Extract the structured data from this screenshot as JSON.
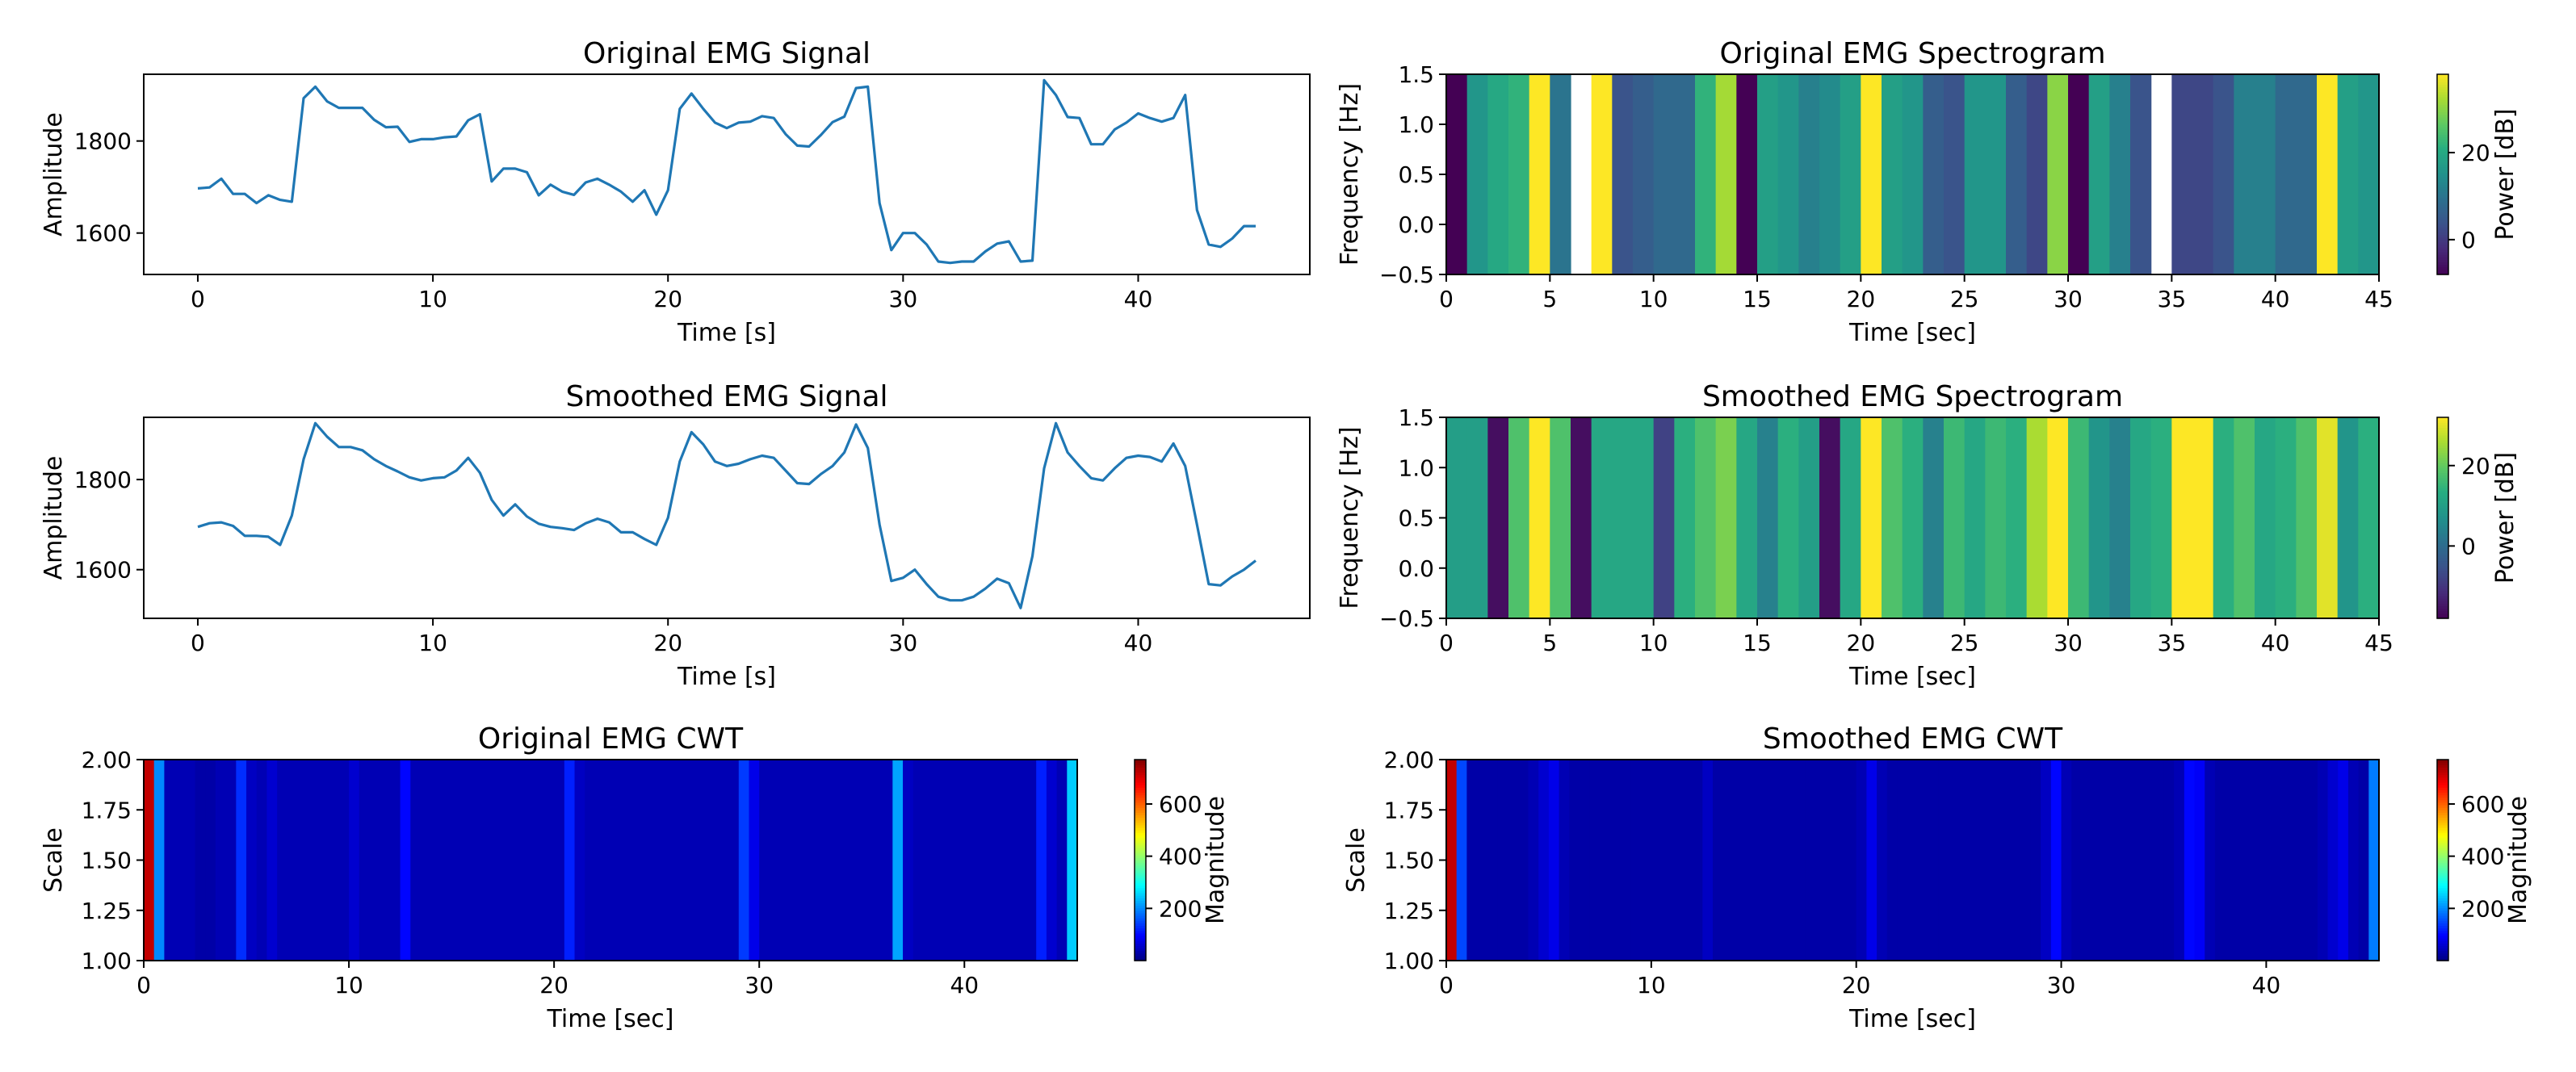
{
  "chart_data": [
    {
      "id": "orig_signal",
      "type": "line",
      "title": "Original EMG Signal",
      "xlabel": "Time [s]",
      "ylabel": "Amplitude",
      "xlim": [
        -2.3,
        47.3
      ],
      "ylim": [
        1510,
        1945
      ],
      "xticks": [
        0,
        10,
        20,
        30,
        40
      ],
      "yticks": [
        1600,
        1800
      ],
      "color": "#1f77b4",
      "x": [
        0,
        0.5,
        1,
        1.5,
        2,
        2.5,
        3,
        3.5,
        4,
        4.5,
        5,
        5.5,
        6,
        6.5,
        7,
        7.5,
        8,
        8.5,
        9,
        9.5,
        10,
        10.5,
        11,
        11.5,
        12,
        12.5,
        13,
        13.5,
        14,
        14.5,
        15,
        15.5,
        16,
        16.5,
        17,
        17.5,
        18,
        18.5,
        19,
        19.5,
        20,
        20.5,
        21,
        21.5,
        22,
        22.5,
        23,
        23.5,
        24,
        24.5,
        25,
        25.5,
        26,
        26.5,
        27,
        27.5,
        28,
        28.5,
        29,
        29.5,
        30,
        30.5,
        31,
        31.5,
        32,
        32.5,
        33,
        33.5,
        34,
        34.5,
        35,
        35.5,
        36,
        36.5,
        37,
        37.5,
        38,
        38.5,
        39,
        39.5,
        40,
        40.5,
        41,
        41.5,
        42,
        42.5,
        43,
        43.5,
        44,
        44.5,
        45
      ],
      "y": [
        1697,
        1699,
        1718,
        1685,
        1685,
        1665,
        1682,
        1672,
        1668,
        1893,
        1918,
        1886,
        1872,
        1872,
        1872,
        1846,
        1830,
        1831,
        1798,
        1804,
        1804,
        1808,
        1810,
        1845,
        1858,
        1712,
        1740,
        1740,
        1732,
        1682,
        1705,
        1690,
        1683,
        1710,
        1718,
        1705,
        1690,
        1668,
        1693,
        1640,
        1693,
        1870,
        1903,
        1870,
        1840,
        1828,
        1840,
        1842,
        1854,
        1850,
        1815,
        1790,
        1788,
        1813,
        1841,
        1853,
        1915,
        1918,
        1665,
        1563,
        1600,
        1600,
        1575,
        1538,
        1535,
        1538,
        1538,
        1560,
        1577,
        1582,
        1538,
        1540,
        1932,
        1900,
        1852,
        1850,
        1793,
        1793,
        1825,
        1840,
        1860,
        1850,
        1842,
        1850,
        1900,
        1650,
        1575,
        1570,
        1588,
        1615,
        1615
      ]
    },
    {
      "id": "smooth_signal",
      "type": "line",
      "title": "Smoothed EMG Signal",
      "xlabel": "Time [s]",
      "ylabel": "Amplitude",
      "xlim": [
        -2.3,
        47.3
      ],
      "ylim": [
        1492,
        1938
      ],
      "xticks": [
        0,
        10,
        20,
        30,
        40
      ],
      "yticks": [
        1600,
        1800
      ],
      "color": "#1f77b4",
      "x": [
        0,
        0.5,
        1,
        1.5,
        2,
        2.5,
        3,
        3.5,
        4,
        4.5,
        5,
        5.5,
        6,
        6.5,
        7,
        7.5,
        8,
        8.5,
        9,
        9.5,
        10,
        10.5,
        11,
        11.5,
        12,
        12.5,
        13,
        13.5,
        14,
        14.5,
        15,
        15.5,
        16,
        16.5,
        17,
        17.5,
        18,
        18.5,
        19,
        19.5,
        20,
        20.5,
        21,
        21.5,
        22,
        22.5,
        23,
        23.5,
        24,
        24.5,
        25,
        25.5,
        26,
        26.5,
        27,
        27.5,
        28,
        28.5,
        29,
        29.5,
        30,
        30.5,
        31,
        31.5,
        32,
        32.5,
        33,
        33.5,
        34,
        34.5,
        35,
        35.5,
        36,
        36.5,
        37,
        37.5,
        38,
        38.5,
        39,
        39.5,
        40,
        40.5,
        41,
        41.5,
        42,
        42.5,
        43,
        43.5,
        44,
        44.5,
        45
      ],
      "y": [
        1695,
        1703,
        1705,
        1697,
        1675,
        1675,
        1673,
        1655,
        1720,
        1845,
        1925,
        1895,
        1872,
        1872,
        1865,
        1845,
        1830,
        1818,
        1805,
        1798,
        1803,
        1805,
        1820,
        1848,
        1815,
        1755,
        1720,
        1745,
        1718,
        1702,
        1695,
        1692,
        1688,
        1703,
        1713,
        1705,
        1683,
        1683,
        1668,
        1655,
        1715,
        1840,
        1905,
        1878,
        1840,
        1830,
        1835,
        1845,
        1853,
        1848,
        1820,
        1792,
        1790,
        1812,
        1830,
        1860,
        1922,
        1870,
        1700,
        1575,
        1582,
        1600,
        1568,
        1540,
        1532,
        1532,
        1540,
        1558,
        1580,
        1570,
        1515,
        1630,
        1825,
        1925,
        1860,
        1830,
        1803,
        1798,
        1825,
        1848,
        1853,
        1850,
        1840,
        1880,
        1830,
        1700,
        1568,
        1565,
        1585,
        1600,
        1620
      ]
    },
    {
      "id": "orig_spec",
      "type": "heatmap",
      "title": "Original EMG Spectrogram",
      "xlabel": "Time [sec]",
      "ylabel": "Frequency [Hz]",
      "xlim": [
        0,
        45
      ],
      "ylim": [
        -0.5,
        1.5
      ],
      "xticks": [
        0,
        5,
        10,
        15,
        20,
        25,
        30,
        35,
        40,
        45
      ],
      "yticks": [
        -0.5,
        0.0,
        0.5,
        1.0,
        1.5
      ],
      "xtick_labels": [
        "0",
        "5",
        "10",
        "15",
        "20",
        "25",
        "30",
        "35",
        "40",
        "45"
      ],
      "ytick_labels": [
        "−0.5",
        "0.0",
        "0.5",
        "1.0",
        "1.5"
      ],
      "colormap": "viridis",
      "vmin": -8,
      "vmax": 38,
      "colorbar_label": "Power [dB]",
      "colorbar_ticks": [
        0,
        20
      ],
      "time_edges": [
        0,
        1,
        2,
        3,
        4,
        5,
        6,
        7,
        8,
        9,
        10,
        11,
        12,
        13,
        14,
        15,
        16,
        17,
        18,
        19,
        20,
        21,
        22,
        23,
        24,
        25,
        26,
        27,
        28,
        29,
        30,
        31,
        32,
        33,
        34,
        35,
        36,
        37,
        38,
        39,
        40,
        41,
        42,
        43,
        44,
        45
      ],
      "power": [
        -8,
        16,
        20,
        22,
        38,
        10,
        null,
        38,
        4,
        6,
        8,
        8,
        22,
        32,
        -8,
        18,
        16,
        12,
        14,
        18,
        38,
        18,
        16,
        6,
        4,
        16,
        16,
        6,
        2,
        30,
        -8,
        18,
        12,
        4,
        null,
        2,
        2,
        4,
        12,
        12,
        8,
        8,
        38,
        18,
        16
      ]
    },
    {
      "id": "smooth_spec",
      "type": "heatmap",
      "title": "Smoothed EMG Spectrogram",
      "xlabel": "Time [sec]",
      "ylabel": "Frequency [Hz]",
      "xlim": [
        0,
        45
      ],
      "ylim": [
        -0.5,
        1.5
      ],
      "xticks": [
        0,
        5,
        10,
        15,
        20,
        25,
        30,
        35,
        40,
        45
      ],
      "yticks": [
        -0.5,
        0.0,
        0.5,
        1.0,
        1.5
      ],
      "xtick_labels": [
        "0",
        "5",
        "10",
        "15",
        "20",
        "25",
        "30",
        "35",
        "40",
        "45"
      ],
      "ytick_labels": [
        "−0.5",
        "0.0",
        "0.5",
        "1.0",
        "1.5"
      ],
      "colormap": "viridis",
      "vmin": -18,
      "vmax": 32,
      "colorbar_label": "Power [dB]",
      "colorbar_ticks": [
        0,
        20
      ],
      "time_edges": [
        0,
        1,
        2,
        3,
        4,
        5,
        6,
        7,
        8,
        9,
        10,
        11,
        12,
        13,
        14,
        15,
        16,
        17,
        18,
        19,
        20,
        21,
        22,
        23,
        24,
        25,
        26,
        27,
        28,
        29,
        30,
        31,
        32,
        33,
        34,
        35,
        36,
        37,
        38,
        39,
        40,
        41,
        42,
        43,
        44,
        45
      ],
      "power": [
        10,
        10,
        -16,
        18,
        32,
        18,
        -16,
        12,
        12,
        12,
        -8,
        14,
        18,
        22,
        12,
        4,
        14,
        10,
        -16,
        12,
        32,
        18,
        14,
        4,
        16,
        12,
        16,
        14,
        26,
        32,
        16,
        8,
        4,
        12,
        14,
        32,
        32,
        14,
        18,
        12,
        14,
        18,
        30,
        8,
        14
      ]
    },
    {
      "id": "orig_cwt",
      "type": "heatmap",
      "title": "Original EMG CWT",
      "xlabel": "Time [sec]",
      "ylabel": "Scale",
      "xlim": [
        0,
        45.5
      ],
      "ylim": [
        1.0,
        2.0
      ],
      "xticks": [
        0,
        10,
        20,
        30,
        40
      ],
      "yticks": [
        1.0,
        1.25,
        1.5,
        1.75,
        2.0
      ],
      "xtick_labels": [
        "0",
        "10",
        "20",
        "30",
        "40"
      ],
      "ytick_labels": [
        "1.00",
        "1.25",
        "1.50",
        "1.75",
        "2.00"
      ],
      "colormap": "jet",
      "vmin": 0,
      "vmax": 770,
      "colorbar_label": "Magnitude",
      "colorbar_ticks": [
        200,
        400,
        600
      ],
      "time_edges": [
        0,
        0.5,
        1,
        1.5,
        2,
        2.5,
        3,
        3.5,
        4,
        4.5,
        5,
        5.5,
        6,
        6.5,
        7,
        7.5,
        8,
        8.5,
        9,
        9.5,
        10,
        10.5,
        11,
        11.5,
        12,
        12.5,
        13,
        13.5,
        14,
        14.5,
        15,
        15.5,
        16,
        16.5,
        17,
        17.5,
        18,
        18.5,
        19,
        19.5,
        20,
        20.5,
        21,
        21.5,
        22,
        22.5,
        23,
        23.5,
        24,
        24.5,
        25,
        25.5,
        26,
        26.5,
        27,
        27.5,
        28,
        28.5,
        29,
        29.5,
        30,
        30.5,
        31,
        31.5,
        32,
        32.5,
        33,
        33.5,
        34,
        34.5,
        35,
        35.5,
        36,
        36.5,
        37,
        37.5,
        38,
        38.5,
        39,
        39.5,
        40,
        40.5,
        41,
        41.5,
        42,
        42.5,
        43,
        43.5,
        44,
        44.5,
        45,
        45.5
      ],
      "magnitude": [
        720,
        200,
        40,
        40,
        40,
        30,
        30,
        40,
        40,
        130,
        50,
        40,
        60,
        40,
        40,
        40,
        40,
        40,
        40,
        40,
        60,
        40,
        40,
        40,
        40,
        100,
        40,
        40,
        40,
        40,
        40,
        40,
        40,
        40,
        40,
        40,
        40,
        40,
        40,
        40,
        40,
        120,
        50,
        40,
        40,
        40,
        40,
        40,
        40,
        40,
        40,
        40,
        40,
        40,
        40,
        40,
        40,
        40,
        140,
        80,
        40,
        40,
        40,
        40,
        40,
        40,
        40,
        40,
        40,
        40,
        40,
        40,
        40,
        220,
        50,
        40,
        40,
        40,
        40,
        40,
        40,
        40,
        40,
        40,
        40,
        40,
        40,
        120,
        60,
        40,
        250
      ]
    },
    {
      "id": "smooth_cwt",
      "type": "heatmap",
      "title": "Smoothed EMG CWT",
      "xlabel": "Time [sec]",
      "ylabel": "Scale",
      "xlim": [
        0,
        45.5
      ],
      "ylim": [
        1.0,
        2.0
      ],
      "xticks": [
        0,
        10,
        20,
        30,
        40
      ],
      "yticks": [
        1.0,
        1.25,
        1.5,
        1.75,
        2.0
      ],
      "xtick_labels": [
        "0",
        "10",
        "20",
        "30",
        "40"
      ],
      "ytick_labels": [
        "1.00",
        "1.25",
        "1.50",
        "1.75",
        "2.00"
      ],
      "colormap": "jet",
      "vmin": 0,
      "vmax": 770,
      "colorbar_label": "Magnitude",
      "colorbar_ticks": [
        200,
        400,
        600
      ],
      "time_edges": [
        0,
        0.5,
        1,
        1.5,
        2,
        2.5,
        3,
        3.5,
        4,
        4.5,
        5,
        5.5,
        6,
        6.5,
        7,
        7.5,
        8,
        8.5,
        9,
        9.5,
        10,
        10.5,
        11,
        11.5,
        12,
        12.5,
        13,
        13.5,
        14,
        14.5,
        15,
        15.5,
        16,
        16.5,
        17,
        17.5,
        18,
        18.5,
        19,
        19.5,
        20,
        20.5,
        21,
        21.5,
        22,
        22.5,
        23,
        23.5,
        24,
        24.5,
        25,
        25.5,
        26,
        26.5,
        27,
        27.5,
        28,
        28.5,
        29,
        29.5,
        30,
        30.5,
        31,
        31.5,
        32,
        32.5,
        33,
        33.5,
        34,
        34.5,
        35,
        35.5,
        36,
        36.5,
        37,
        37.5,
        38,
        38.5,
        39,
        39.5,
        40,
        40.5,
        41,
        41.5,
        42,
        42.5,
        43,
        43.5,
        44,
        44.5,
        45,
        45.5
      ],
      "magnitude": [
        720,
        150,
        30,
        30,
        30,
        30,
        30,
        30,
        40,
        60,
        80,
        40,
        30,
        30,
        30,
        30,
        30,
        30,
        30,
        30,
        30,
        30,
        30,
        30,
        30,
        50,
        30,
        30,
        30,
        30,
        30,
        30,
        30,
        30,
        30,
        30,
        30,
        30,
        30,
        30,
        40,
        80,
        40,
        30,
        30,
        30,
        30,
        30,
        30,
        30,
        30,
        30,
        30,
        30,
        30,
        30,
        30,
        30,
        50,
        100,
        40,
        30,
        30,
        30,
        30,
        30,
        30,
        30,
        30,
        30,
        30,
        40,
        100,
        90,
        40,
        30,
        30,
        30,
        30,
        30,
        30,
        30,
        30,
        30,
        30,
        40,
        60,
        80,
        40,
        30,
        190
      ]
    }
  ]
}
